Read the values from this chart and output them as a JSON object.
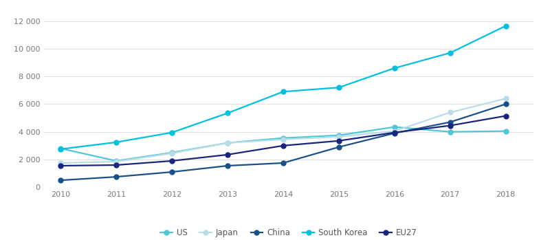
{
  "years": [
    2010,
    2011,
    2012,
    2013,
    2014,
    2015,
    2016,
    2017,
    2018
  ],
  "series": {
    "US": [
      2800,
      1900,
      2500,
      3200,
      3550,
      3750,
      4350,
      4000,
      4050
    ],
    "Japan": [
      1750,
      1850,
      2450,
      3200,
      3450,
      3650,
      4050,
      5400,
      6400
    ],
    "China": [
      500,
      750,
      1100,
      1550,
      1750,
      2900,
      3900,
      4700,
      6000
    ],
    "South Korea": [
      2750,
      3250,
      3950,
      5350,
      6900,
      7200,
      8600,
      9700,
      11650
    ],
    "EU27": [
      1550,
      1600,
      1900,
      2350,
      3000,
      3350,
      3950,
      4450,
      5150
    ]
  },
  "colors": {
    "US": "#4DC8D8",
    "Japan": "#B8DCE8",
    "China": "#1B4F8A",
    "South Korea": "#00C0E0",
    "EU27": "#1A237E"
  },
  "marker_size": 5,
  "linewidth": 1.6,
  "ylim": [
    0,
    13000
  ],
  "yticks": [
    0,
    2000,
    4000,
    6000,
    8000,
    10000,
    12000
  ],
  "ytick_labels": [
    "0",
    "2 000",
    "4 000",
    "6 000",
    "8 000",
    "10 000",
    "12 000"
  ],
  "background_color": "#FFFFFF",
  "grid_color": "#E0E0E0",
  "legend_order": [
    "US",
    "Japan",
    "China",
    "South Korea",
    "EU27"
  ]
}
